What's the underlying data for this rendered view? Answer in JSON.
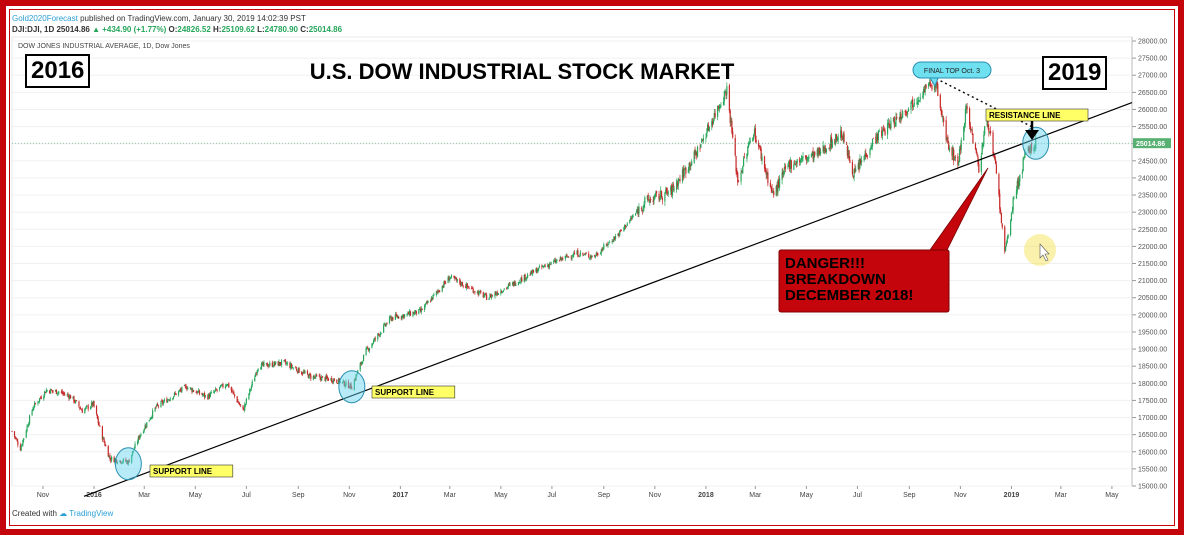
{
  "header": {
    "author": "Gold2020Forecast",
    "published": "published on TradingView.com, January 30, 2019 14:02:39 PST",
    "symbol_line": "DJI:DJI, 1D",
    "last": "25014.86",
    "change": "+434.90 (+1.77%)",
    "ohlc": {
      "O": "24826.52",
      "H": "25109.62",
      "L": "24780.90",
      "C": "25014.86"
    },
    "series_name": "DOW JONES INDUSTRIAL AVERAGE, 1D, Dow Jones"
  },
  "footer": {
    "created_with": "Created with",
    "brand": "TradingView"
  },
  "chart_data": {
    "type": "candlestick",
    "title": "U.S. DOW INDUSTRIAL STOCK MARKET",
    "year_start_box": "2016",
    "year_end_box": "2019",
    "x_tick_labels": [
      "Nov",
      "2016",
      "Mar",
      "May",
      "Jul",
      "Sep",
      "Nov",
      "2017",
      "Mar",
      "May",
      "Jul",
      "Sep",
      "Nov",
      "2018",
      "Mar",
      "May",
      "Jul",
      "Sep",
      "Nov",
      "2019",
      "Mar",
      "May"
    ],
    "x_tick_dates": [
      "2015-11-01",
      "2016-01-01",
      "2016-03-01",
      "2016-05-01",
      "2016-07-01",
      "2016-09-01",
      "2016-11-01",
      "2017-01-01",
      "2017-03-01",
      "2017-05-01",
      "2017-07-01",
      "2017-09-01",
      "2017-11-01",
      "2018-01-01",
      "2018-03-01",
      "2018-05-01",
      "2018-07-01",
      "2018-09-01",
      "2018-11-01",
      "2019-01-01",
      "2019-03-01",
      "2019-05-01"
    ],
    "xlim": [
      "2015-09-25",
      "2019-05-25"
    ],
    "y_ticks": [
      15000,
      15500,
      16000,
      16500,
      17000,
      17500,
      18000,
      18500,
      19000,
      19500,
      20000,
      20500,
      21000,
      21500,
      22000,
      22500,
      23000,
      23500,
      24000,
      24500,
      25000,
      25500,
      26000,
      26500,
      27000,
      27500,
      28000
    ],
    "ylim": [
      15000,
      28000
    ],
    "last_price_label": "25014.86",
    "close_path": [
      [
        "2015-09-25",
        16600
      ],
      [
        "2015-10-05",
        16100
      ],
      [
        "2015-10-20",
        17300
      ],
      [
        "2015-11-05",
        17800
      ],
      [
        "2015-11-20",
        17750
      ],
      [
        "2015-12-05",
        17600
      ],
      [
        "2015-12-18",
        17200
      ],
      [
        "2015-12-31",
        17400
      ],
      [
        "2016-01-10",
        16500
      ],
      [
        "2016-01-20",
        15800
      ],
      [
        "2016-02-11",
        15700
      ],
      [
        "2016-02-25",
        16500
      ],
      [
        "2016-03-15",
        17300
      ],
      [
        "2016-04-20",
        17900
      ],
      [
        "2016-05-15",
        17600
      ],
      [
        "2016-06-08",
        18000
      ],
      [
        "2016-06-27",
        17200
      ],
      [
        "2016-07-15",
        18500
      ],
      [
        "2016-08-15",
        18600
      ],
      [
        "2016-09-15",
        18200
      ],
      [
        "2016-10-15",
        18100
      ],
      [
        "2016-11-04",
        17900
      ],
      [
        "2016-11-20",
        18900
      ],
      [
        "2016-12-20",
        19900
      ],
      [
        "2017-01-25",
        20100
      ],
      [
        "2017-03-01",
        21100
      ],
      [
        "2017-04-15",
        20500
      ],
      [
        "2017-05-15",
        20900
      ],
      [
        "2017-06-20",
        21400
      ],
      [
        "2017-07-30",
        21800
      ],
      [
        "2017-08-20",
        21700
      ],
      [
        "2017-09-20",
        22400
      ],
      [
        "2017-10-20",
        23300
      ],
      [
        "2017-11-20",
        23600
      ],
      [
        "2017-12-20",
        24700
      ],
      [
        "2018-01-26",
        26600
      ],
      [
        "2018-02-08",
        23900
      ],
      [
        "2018-02-27",
        25400
      ],
      [
        "2018-03-22",
        23500
      ],
      [
        "2018-04-10",
        24400
      ],
      [
        "2018-05-15",
        24700
      ],
      [
        "2018-06-12",
        25300
      ],
      [
        "2018-06-27",
        24100
      ],
      [
        "2018-07-20",
        25100
      ],
      [
        "2018-08-20",
        25800
      ],
      [
        "2018-09-20",
        26600
      ],
      [
        "2018-10-03",
        26800
      ],
      [
        "2018-10-15",
        25100
      ],
      [
        "2018-10-29",
        24400
      ],
      [
        "2018-11-08",
        26100
      ],
      [
        "2018-11-23",
        24300
      ],
      [
        "2018-12-03",
        25800
      ],
      [
        "2018-12-14",
        24100
      ],
      [
        "2018-12-24",
        21800
      ],
      [
        "2019-01-04",
        23400
      ],
      [
        "2019-01-18",
        24700
      ],
      [
        "2019-01-30",
        25014
      ]
    ],
    "annotations": {
      "support_label": "SUPPORT LINE",
      "resistance_label": "RESISTANCE LINE",
      "final_top": "FINAL TOP Oct. 3",
      "danger_text": [
        "DANGER!!!",
        "BREAKDOWN",
        "DECEMBER 2018!"
      ],
      "trendline_points": [
        [
          "2015-12-20",
          14700
        ],
        [
          "2019-05-25",
          26200
        ]
      ],
      "circles": [
        [
          "2016-02-11",
          15650
        ],
        [
          "2016-11-04",
          17900
        ],
        [
          "2019-01-30",
          25014
        ]
      ]
    },
    "colors": {
      "up": "#26a65b",
      "down": "#c62828",
      "frame": "#c4060c",
      "callout": "#c4060c",
      "highlight": "#ffff66",
      "circle": "#5fd3f0",
      "bubble": "#6fe0f0",
      "grid_h": "#f0f0f0",
      "last_price": "#58b072"
    }
  }
}
